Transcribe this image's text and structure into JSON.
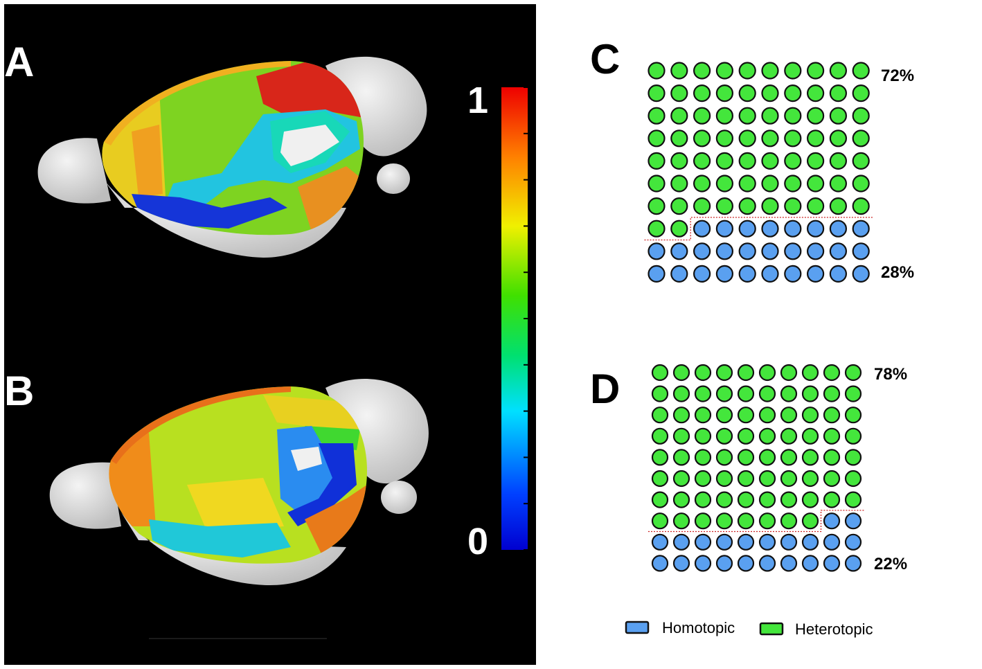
{
  "panels": {
    "A": {
      "label": "A"
    },
    "B": {
      "label": "B"
    },
    "C": {
      "label": "C",
      "heterotopic_pct": 72,
      "homotopic_pct": 28,
      "top_label": "72%",
      "bottom_label": "28%"
    },
    "D": {
      "label": "D",
      "heterotopic_pct": 78,
      "homotopic_pct": 22,
      "top_label": "78%",
      "bottom_label": "22%"
    }
  },
  "colorbar": {
    "max_label": "1",
    "min_label": "0",
    "ticks": 11
  },
  "legend": {
    "homotopic": {
      "label": "Homotopic",
      "color": "#5aa0f0"
    },
    "heterotopic": {
      "label": "Heterotopic",
      "color": "#44e63c"
    }
  },
  "colors": {
    "background_left": "#000000",
    "dot_stroke": "#111111",
    "separator": "#cc2222"
  }
}
